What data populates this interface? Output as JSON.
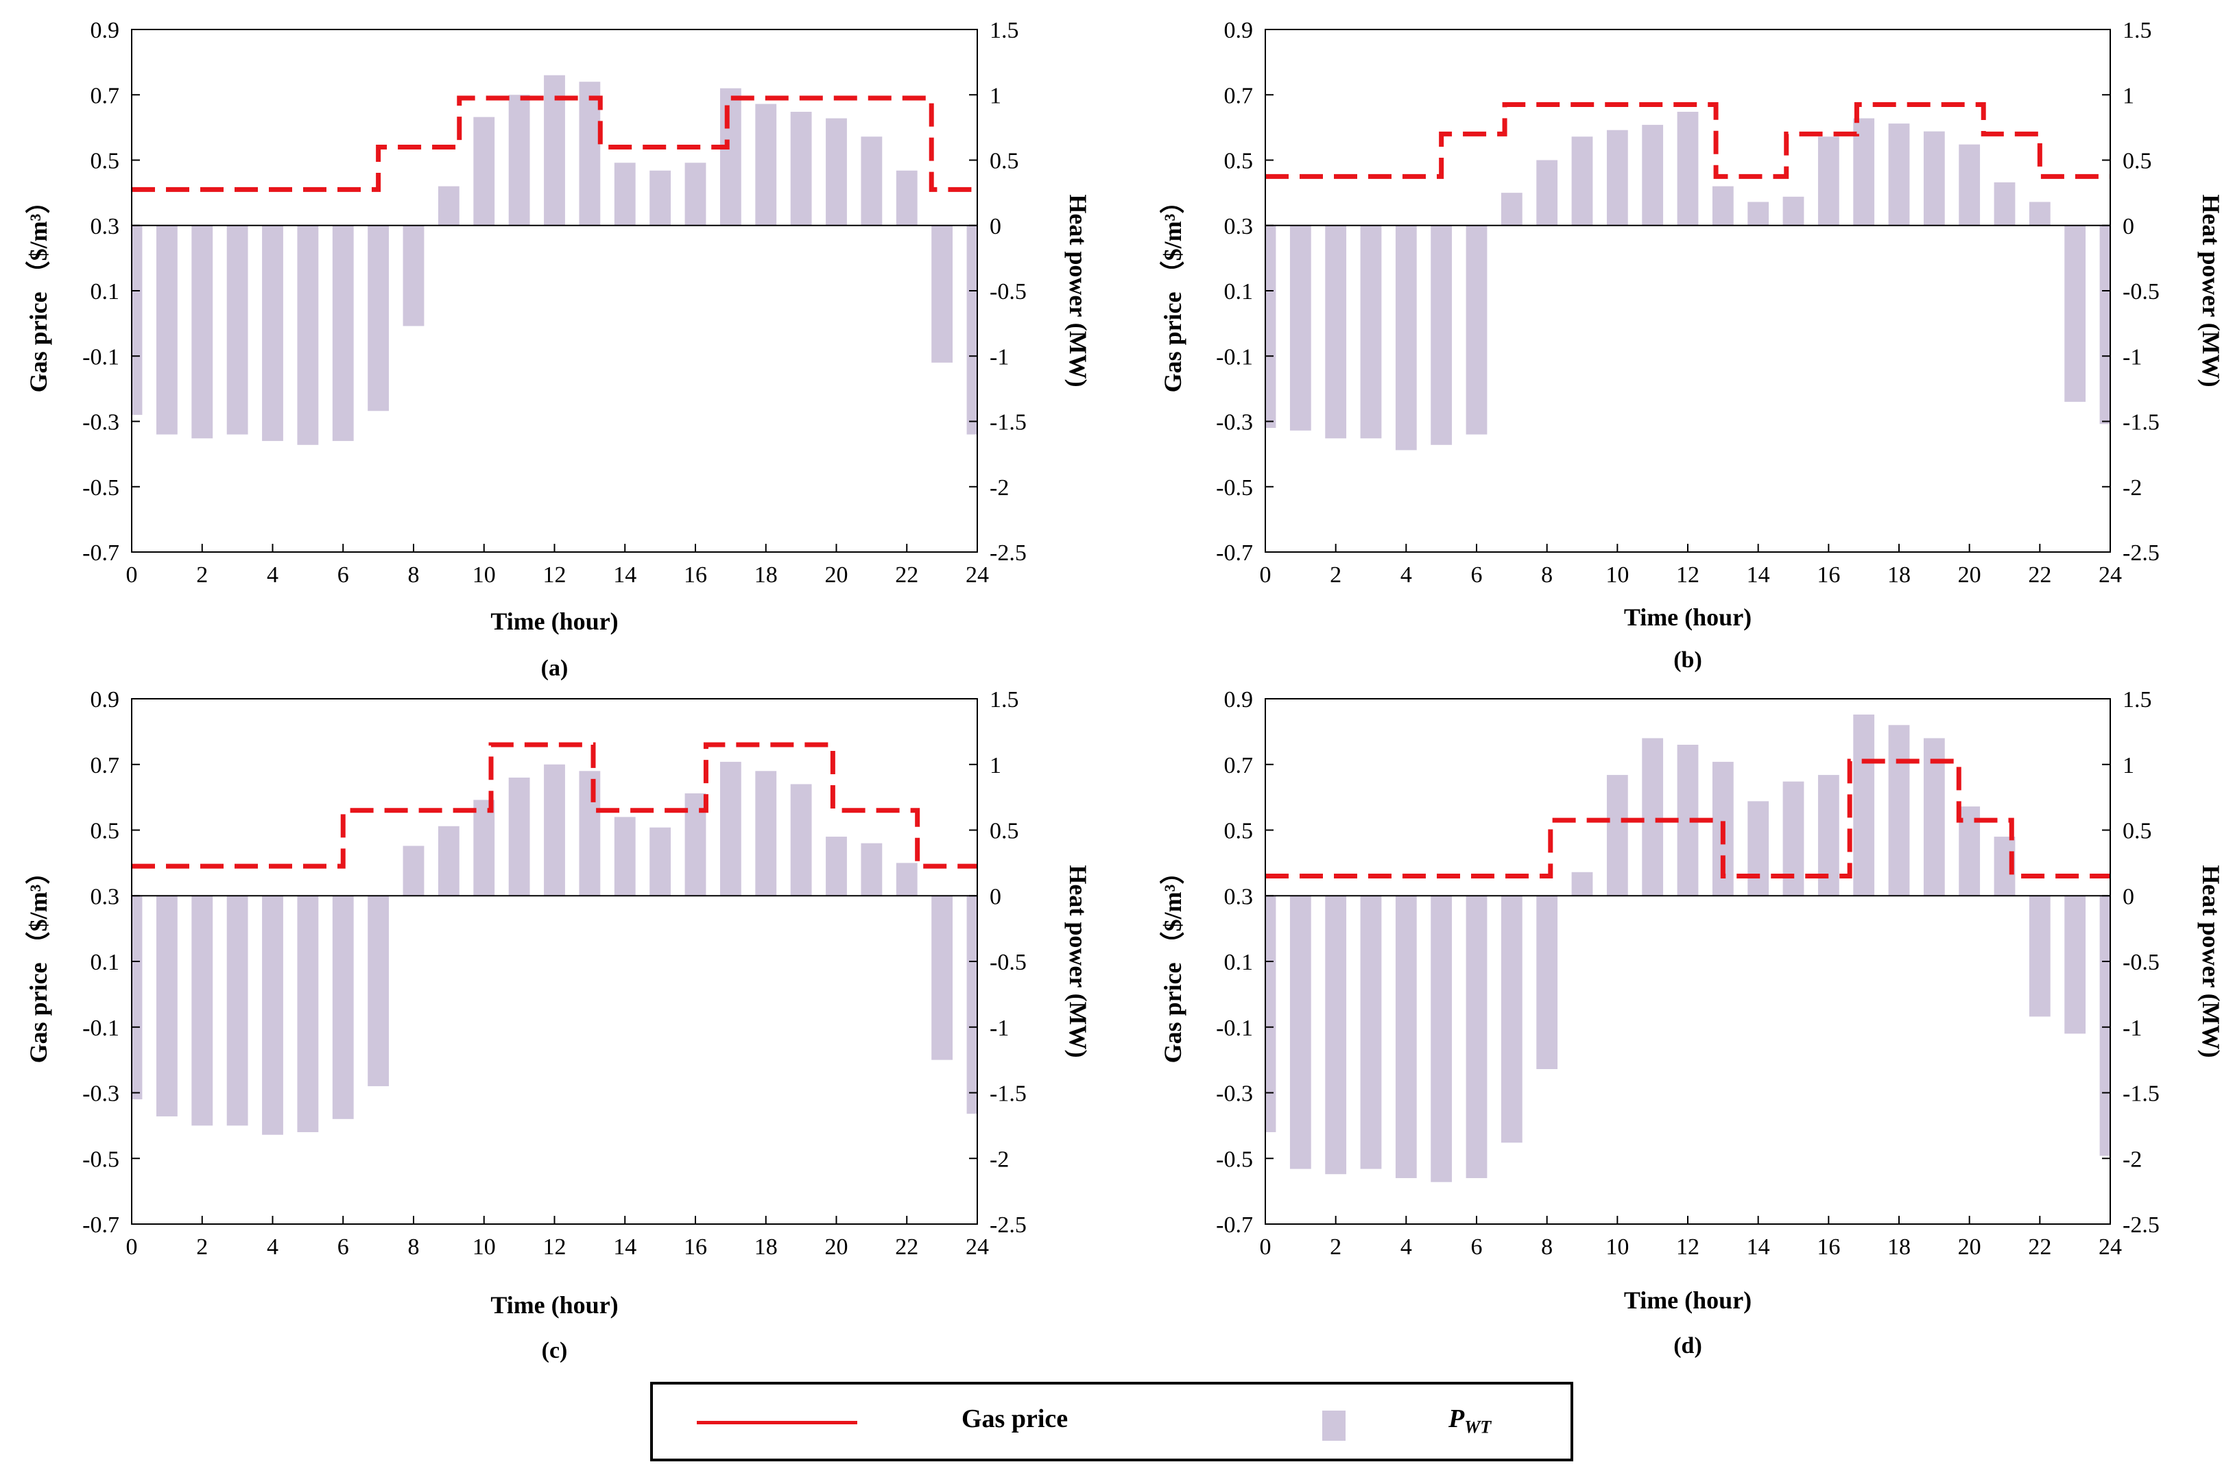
{
  "legend": {
    "line_label": "Gas price",
    "bar_label_main": "P",
    "bar_label_sub": "WT"
  },
  "chart_data": [
    {
      "type": "bar+step",
      "panel_label": "(a)",
      "xlabel": "Time (hour)",
      "ylabel_left": "Gas price （$/m³）",
      "ylabel_right": "Heat power (MW)",
      "x_ticks": [
        0,
        2,
        4,
        6,
        8,
        10,
        12,
        14,
        16,
        18,
        20,
        22,
        24
      ],
      "xlim": [
        0,
        24
      ],
      "y_left_ticks": [
        "0.9",
        "0.7",
        "0.5",
        "0.3",
        "0.1",
        "-0.1",
        "-0.3",
        "-0.5",
        "-0.7"
      ],
      "y_left_lim": [
        -0.7,
        0.9
      ],
      "y_right_ticks": [
        "1.5",
        "1",
        "0.5",
        "0",
        "-0.5",
        "-1",
        "-1.5",
        "-2",
        "-2.5"
      ],
      "y_right_lim": [
        -2.5,
        1.5
      ],
      "bars_hours": [
        0,
        1,
        2,
        3,
        4,
        5,
        6,
        7,
        8,
        9,
        10,
        11,
        12,
        13,
        14,
        15,
        16,
        17,
        18,
        19,
        20,
        21,
        22,
        23,
        24
      ],
      "heat_power_MW": [
        -1.45,
        -1.6,
        -1.63,
        -1.6,
        -1.65,
        -1.68,
        -1.65,
        -1.42,
        -0.77,
        0.3,
        0.83,
        1.0,
        1.15,
        1.1,
        0.48,
        0.42,
        0.48,
        1.05,
        0.93,
        0.87,
        0.82,
        0.68,
        0.42,
        -1.05,
        -1.6
      ],
      "gas_price_steps": [
        {
          "from": 0,
          "to": 7,
          "value": 0.41
        },
        {
          "from": 7,
          "to": 9.3,
          "value": 0.54
        },
        {
          "from": 9.3,
          "to": 13.3,
          "value": 0.69
        },
        {
          "from": 13.3,
          "to": 16.9,
          "value": 0.54
        },
        {
          "from": 16.9,
          "to": 22.7,
          "value": 0.69
        },
        {
          "from": 22.7,
          "to": 24,
          "value": 0.41
        }
      ]
    },
    {
      "type": "bar+step",
      "panel_label": "(b)",
      "xlabel": "Time (hour)",
      "ylabel_left": "Gas price （$/m³）",
      "ylabel_right": "Heat power (MW)",
      "x_ticks": [
        0,
        2,
        4,
        6,
        8,
        10,
        12,
        14,
        16,
        18,
        20,
        22,
        24
      ],
      "xlim": [
        0,
        24
      ],
      "y_left_ticks": [
        "0.9",
        "0.7",
        "0.5",
        "0.3",
        "0.1",
        "-0.1",
        "-0.3",
        "-0.5",
        "-0.7"
      ],
      "y_left_lim": [
        -0.7,
        0.9
      ],
      "y_right_ticks": [
        "1.5",
        "1",
        "0.5",
        "0",
        "-0.5",
        "-1",
        "-1.5",
        "-2",
        "-2.5"
      ],
      "y_right_lim": [
        -2.5,
        1.5
      ],
      "bars_hours": [
        0,
        1,
        2,
        3,
        4,
        5,
        6,
        7,
        8,
        9,
        10,
        11,
        12,
        13,
        14,
        15,
        16,
        17,
        18,
        19,
        20,
        21,
        22,
        23,
        24
      ],
      "heat_power_MW": [
        -1.55,
        -1.57,
        -1.63,
        -1.63,
        -1.72,
        -1.68,
        -1.6,
        0.25,
        0.5,
        0.68,
        0.73,
        0.77,
        0.87,
        0.3,
        0.18,
        0.22,
        0.68,
        0.82,
        0.78,
        0.72,
        0.62,
        0.33,
        0.18,
        -1.35,
        -1.52
      ],
      "gas_price_steps": [
        {
          "from": 0,
          "to": 5,
          "value": 0.45
        },
        {
          "from": 5,
          "to": 6.8,
          "value": 0.58
        },
        {
          "from": 6.8,
          "to": 12.8,
          "value": 0.67
        },
        {
          "from": 12.8,
          "to": 14.8,
          "value": 0.45
        },
        {
          "from": 14.8,
          "to": 16.8,
          "value": 0.58
        },
        {
          "from": 16.8,
          "to": 20.4,
          "value": 0.67
        },
        {
          "from": 20.4,
          "to": 22,
          "value": 0.58
        },
        {
          "from": 22,
          "to": 24,
          "value": 0.45
        }
      ]
    },
    {
      "type": "bar+step",
      "panel_label": "(c)",
      "xlabel": "Time (hour)",
      "ylabel_left": "Gas price （$/m³）",
      "ylabel_right": "Heat power (MW)",
      "x_ticks": [
        0,
        2,
        4,
        6,
        8,
        10,
        12,
        14,
        16,
        18,
        20,
        22,
        24
      ],
      "xlim": [
        0,
        24
      ],
      "y_left_ticks": [
        "0.9",
        "0.7",
        "0.5",
        "0.3",
        "0.1",
        "-0.1",
        "-0.3",
        "-0.5",
        "-0.7"
      ],
      "y_left_lim": [
        -0.7,
        0.9
      ],
      "y_right_ticks": [
        "1.5",
        "1",
        "0.5",
        "0",
        "-0.5",
        "-1",
        "-1.5",
        "-2",
        "-2.5"
      ],
      "y_right_lim": [
        -2.5,
        1.5
      ],
      "bars_hours": [
        0,
        1,
        2,
        3,
        4,
        5,
        6,
        7,
        8,
        9,
        10,
        11,
        12,
        13,
        14,
        15,
        16,
        17,
        18,
        19,
        20,
        21,
        22,
        23,
        24
      ],
      "heat_power_MW": [
        -1.55,
        -1.68,
        -1.75,
        -1.75,
        -1.82,
        -1.8,
        -1.7,
        -1.45,
        0.38,
        0.53,
        0.73,
        0.9,
        1.0,
        0.95,
        0.6,
        0.52,
        0.78,
        1.02,
        0.95,
        0.85,
        0.45,
        0.4,
        0.25,
        -1.25,
        -1.66
      ],
      "gas_price_steps": [
        {
          "from": 0,
          "to": 6,
          "value": 0.39
        },
        {
          "from": 6,
          "to": 10.2,
          "value": 0.56
        },
        {
          "from": 10.2,
          "to": 13.1,
          "value": 0.76
        },
        {
          "from": 13.1,
          "to": 16.3,
          "value": 0.56
        },
        {
          "from": 16.3,
          "to": 19.9,
          "value": 0.76
        },
        {
          "from": 19.9,
          "to": 22.3,
          "value": 0.56
        },
        {
          "from": 22.3,
          "to": 24,
          "value": 0.39
        }
      ]
    },
    {
      "type": "bar+step",
      "panel_label": "(d)",
      "xlabel": "Time (hour)",
      "ylabel_left": "Gas price （$/m³）",
      "ylabel_right": "Heat power (MW)",
      "x_ticks": [
        0,
        2,
        4,
        6,
        8,
        10,
        12,
        14,
        16,
        18,
        20,
        22,
        24
      ],
      "xlim": [
        0,
        24
      ],
      "y_left_ticks": [
        "0.9",
        "0.7",
        "0.5",
        "0.3",
        "0.1",
        "-0.1",
        "-0.3",
        "-0.5",
        "-0.7"
      ],
      "y_left_lim": [
        -0.7,
        0.9
      ],
      "y_right_ticks": [
        "1.5",
        "1",
        "0.5",
        "0",
        "-0.5",
        "-1",
        "-1.5",
        "-2",
        "-2.5"
      ],
      "y_right_lim": [
        -2.5,
        1.5
      ],
      "bars_hours": [
        0,
        1,
        2,
        3,
        4,
        5,
        6,
        7,
        8,
        9,
        10,
        11,
        12,
        13,
        14,
        15,
        16,
        17,
        18,
        19,
        20,
        21,
        22,
        23,
        24
      ],
      "heat_power_MW": [
        -1.8,
        -2.08,
        -2.12,
        -2.08,
        -2.15,
        -2.18,
        -2.15,
        -1.88,
        -1.32,
        0.18,
        0.92,
        1.2,
        1.15,
        1.02,
        0.72,
        0.87,
        0.92,
        1.38,
        1.3,
        1.2,
        0.68,
        0.45,
        -0.92,
        -1.05,
        -1.98
      ],
      "gas_price_steps": [
        {
          "from": 0,
          "to": 8.1,
          "value": 0.36
        },
        {
          "from": 8.1,
          "to": 13,
          "value": 0.53
        },
        {
          "from": 13,
          "to": 16.6,
          "value": 0.36
        },
        {
          "from": 16.6,
          "to": 19.7,
          "value": 0.71
        },
        {
          "from": 19.7,
          "to": 21.2,
          "value": 0.53
        },
        {
          "from": 21.2,
          "to": 24,
          "value": 0.36
        }
      ]
    }
  ]
}
